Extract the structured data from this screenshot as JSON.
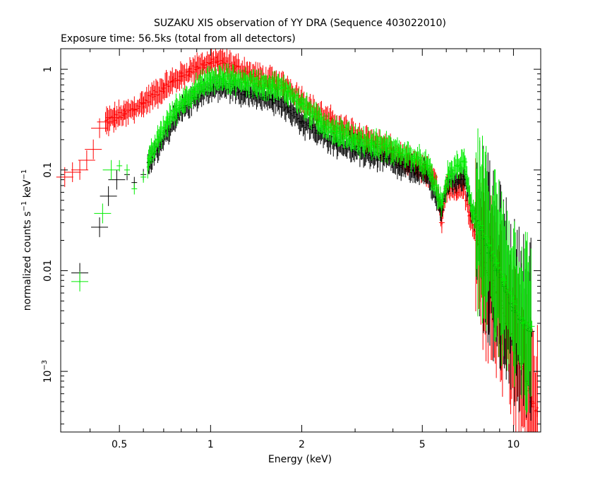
{
  "chart_data": {
    "type": "scatter",
    "title": "SUZAKU XIS observation of YY DRA (Sequence 403022010)",
    "subtitle": "Exposure time: 56.5ks (total from all detectors)",
    "xlabel": "Energy (keV)",
    "ylabel_main": "normalized counts s",
    "ylabel_sup1": "−1",
    "ylabel_mid": " keV",
    "ylabel_sup2": "−1",
    "x_scale": "log",
    "y_scale": "log",
    "xlim": [
      0.32,
      12.3
    ],
    "ylim": [
      0.00025,
      1.6
    ],
    "x_ticks": [
      {
        "value": 0.5,
        "label": "0.5"
      },
      {
        "value": 1,
        "label": "1"
      },
      {
        "value": 2,
        "label": "2"
      },
      {
        "value": 5,
        "label": "5"
      },
      {
        "value": 10,
        "label": "10"
      }
    ],
    "y_ticks": [
      {
        "value": 1,
        "label": "1",
        "sup": ""
      },
      {
        "value": 0.1,
        "label": "0.1",
        "sup": ""
      },
      {
        "value": 0.01,
        "label": "0.01",
        "sup": ""
      },
      {
        "value": 0.001,
        "label": "10",
        "sup": "−3"
      }
    ],
    "grid": false,
    "legend": "none",
    "series": [
      {
        "color": "#ff0000",
        "points": [
          [
            0.33,
            0.085
          ],
          [
            0.35,
            0.095
          ],
          [
            0.37,
            0.1
          ],
          [
            0.39,
            0.125
          ],
          [
            0.41,
            0.16
          ],
          [
            0.43,
            0.26
          ],
          [
            0.45,
            0.3
          ],
          [
            0.48,
            0.33
          ],
          [
            0.52,
            0.36
          ],
          [
            0.56,
            0.4
          ],
          [
            0.6,
            0.46
          ],
          [
            0.65,
            0.56
          ],
          [
            0.7,
            0.65
          ],
          [
            0.75,
            0.75
          ],
          [
            0.8,
            0.85
          ],
          [
            0.85,
            0.95
          ],
          [
            0.9,
            1.05
          ],
          [
            0.95,
            1.1
          ],
          [
            1.0,
            1.15
          ],
          [
            1.05,
            1.2
          ],
          [
            1.1,
            1.15
          ],
          [
            1.2,
            1.05
          ],
          [
            1.3,
            0.95
          ],
          [
            1.4,
            0.85
          ],
          [
            1.5,
            0.8
          ],
          [
            1.6,
            0.75
          ],
          [
            1.8,
            0.65
          ],
          [
            2.0,
            0.5
          ],
          [
            2.2,
            0.38
          ],
          [
            2.5,
            0.3
          ],
          [
            2.8,
            0.25
          ],
          [
            3.2,
            0.21
          ],
          [
            3.6,
            0.18
          ],
          [
            4.0,
            0.15
          ],
          [
            4.5,
            0.12
          ],
          [
            5.0,
            0.1
          ],
          [
            5.5,
            0.085
          ],
          [
            5.8,
            0.03
          ],
          [
            6.0,
            0.065
          ],
          [
            6.5,
            0.06
          ],
          [
            6.8,
            0.07
          ],
          [
            7.2,
            0.035
          ],
          [
            7.6,
            0.02
          ],
          [
            8.0,
            0.012
          ],
          [
            8.5,
            0.008
          ],
          [
            9.0,
            0.005
          ],
          [
            9.5,
            0.003
          ],
          [
            10.0,
            0.002
          ],
          [
            10.5,
            0.0012
          ],
          [
            11.0,
            0.0008
          ],
          [
            11.5,
            0.0005
          ],
          [
            12.0,
            0.0004
          ]
        ]
      },
      {
        "color": "#000000",
        "points": [
          [
            0.37,
            0.0095
          ],
          [
            0.43,
            0.027
          ],
          [
            0.46,
            0.055
          ],
          [
            0.49,
            0.08
          ],
          [
            0.53,
            0.09
          ],
          [
            0.56,
            0.075
          ],
          [
            0.6,
            0.09
          ],
          [
            0.63,
            0.12
          ],
          [
            0.67,
            0.17
          ],
          [
            0.72,
            0.25
          ],
          [
            0.77,
            0.33
          ],
          [
            0.82,
            0.42
          ],
          [
            0.88,
            0.52
          ],
          [
            0.94,
            0.6
          ],
          [
            1.0,
            0.65
          ],
          [
            1.1,
            0.68
          ],
          [
            1.2,
            0.65
          ],
          [
            1.3,
            0.6
          ],
          [
            1.4,
            0.55
          ],
          [
            1.5,
            0.52
          ],
          [
            1.6,
            0.5
          ],
          [
            1.8,
            0.42
          ],
          [
            2.0,
            0.3
          ],
          [
            2.3,
            0.23
          ],
          [
            2.6,
            0.19
          ],
          [
            3.0,
            0.16
          ],
          [
            3.4,
            0.14
          ],
          [
            3.8,
            0.13
          ],
          [
            4.2,
            0.11
          ],
          [
            4.7,
            0.1
          ],
          [
            5.2,
            0.09
          ],
          [
            5.8,
            0.04
          ],
          [
            6.1,
            0.08
          ],
          [
            6.6,
            0.08
          ],
          [
            6.9,
            0.09
          ],
          [
            7.3,
            0.04
          ],
          [
            7.8,
            0.025
          ],
          [
            8.3,
            0.015
          ],
          [
            8.8,
            0.01
          ],
          [
            9.3,
            0.007
          ],
          [
            10.0,
            0.004
          ],
          [
            10.8,
            0.003
          ],
          [
            11.5,
            0.0025
          ]
        ]
      },
      {
        "color": "#00ee00",
        "points": [
          [
            0.37,
            0.0078
          ],
          [
            0.44,
            0.037
          ],
          [
            0.47,
            0.1
          ],
          [
            0.5,
            0.11
          ],
          [
            0.53,
            0.1
          ],
          [
            0.56,
            0.065
          ],
          [
            0.6,
            0.085
          ],
          [
            0.63,
            0.13
          ],
          [
            0.67,
            0.2
          ],
          [
            0.72,
            0.3
          ],
          [
            0.77,
            0.4
          ],
          [
            0.82,
            0.5
          ],
          [
            0.88,
            0.6
          ],
          [
            0.94,
            0.7
          ],
          [
            1.0,
            0.78
          ],
          [
            1.1,
            0.8
          ],
          [
            1.2,
            0.78
          ],
          [
            1.3,
            0.75
          ],
          [
            1.4,
            0.72
          ],
          [
            1.5,
            0.7
          ],
          [
            1.6,
            0.68
          ],
          [
            1.8,
            0.6
          ],
          [
            2.0,
            0.45
          ],
          [
            2.3,
            0.3
          ],
          [
            2.6,
            0.24
          ],
          [
            3.0,
            0.2
          ],
          [
            3.4,
            0.18
          ],
          [
            3.8,
            0.17
          ],
          [
            4.2,
            0.15
          ],
          [
            4.7,
            0.13
          ],
          [
            5.2,
            0.11
          ],
          [
            5.8,
            0.045
          ],
          [
            6.1,
            0.09
          ],
          [
            6.6,
            0.11
          ],
          [
            6.9,
            0.12
          ],
          [
            7.3,
            0.04
          ],
          [
            7.8,
            0.028
          ],
          [
            8.3,
            0.018
          ],
          [
            8.8,
            0.012
          ],
          [
            9.3,
            0.008
          ],
          [
            10.0,
            0.005
          ],
          [
            10.8,
            0.003
          ],
          [
            11.5,
            0.0028
          ]
        ]
      }
    ]
  }
}
